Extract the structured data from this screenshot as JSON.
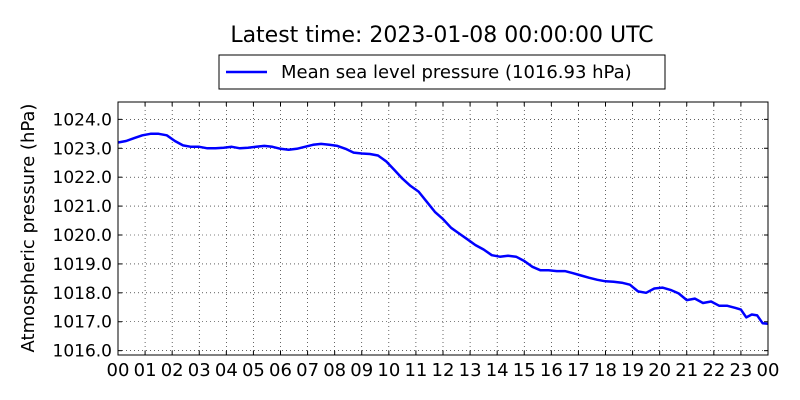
{
  "chart_data": {
    "type": "line",
    "title": "Latest time: 2023-01-08 00:00:00 UTC",
    "ylabel": "Atmospheric pressure (hPa)",
    "xlabel": "",
    "legend_position": "top",
    "grid": true,
    "grid_style": "dotted",
    "xlim": [
      0,
      24
    ],
    "ylim": [
      1015.85,
      1024.6
    ],
    "x_ticks": [
      0,
      1,
      2,
      3,
      4,
      5,
      6,
      7,
      8,
      9,
      10,
      11,
      12,
      13,
      14,
      15,
      16,
      17,
      18,
      19,
      20,
      21,
      22,
      23,
      24
    ],
    "x_tick_labels": [
      "00",
      "01",
      "02",
      "03",
      "04",
      "05",
      "06",
      "07",
      "08",
      "09",
      "10",
      "11",
      "12",
      "13",
      "14",
      "15",
      "16",
      "17",
      "18",
      "19",
      "20",
      "21",
      "22",
      "23",
      "00"
    ],
    "y_ticks": [
      1016,
      1017,
      1018,
      1019,
      1020,
      1021,
      1022,
      1023,
      1024
    ],
    "y_tick_labels": [
      "1016.0",
      "1017.0",
      "1018.0",
      "1019.0",
      "1020.0",
      "1021.0",
      "1022.0",
      "1023.0",
      "1024.0"
    ],
    "series": [
      {
        "name": "Mean sea level pressure (1016.93 hPa)",
        "color": "#0000ff",
        "x": [
          0,
          0.3,
          0.6,
          0.9,
          1.2,
          1.5,
          1.8,
          2.1,
          2.4,
          2.7,
          3,
          3.3,
          3.6,
          3.9,
          4.2,
          4.5,
          4.8,
          5.1,
          5.4,
          5.7,
          6,
          6.3,
          6.6,
          6.9,
          7.2,
          7.5,
          7.8,
          8.1,
          8.4,
          8.7,
          9,
          9.3,
          9.6,
          9.9,
          10.2,
          10.5,
          10.8,
          11.1,
          11.4,
          11.7,
          12,
          12.3,
          12.6,
          12.9,
          13.2,
          13.5,
          13.8,
          14.1,
          14.4,
          14.7,
          15,
          15.3,
          15.6,
          15.9,
          16.2,
          16.5,
          16.8,
          17.1,
          17.4,
          17.7,
          18,
          18.3,
          18.6,
          18.9,
          19.2,
          19.5,
          19.8,
          20.1,
          20.4,
          20.7,
          21,
          21.3,
          21.6,
          21.9,
          22.2,
          22.5,
          22.8,
          23,
          23.2,
          23.4,
          23.6,
          23.8,
          24
        ],
        "y": [
          1023.2,
          1023.25,
          1023.35,
          1023.45,
          1023.5,
          1023.5,
          1023.45,
          1023.25,
          1023.1,
          1023.05,
          1023.05,
          1023.0,
          1023.0,
          1023.02,
          1023.05,
          1023.0,
          1023.02,
          1023.05,
          1023.08,
          1023.05,
          1022.98,
          1022.95,
          1022.98,
          1023.05,
          1023.12,
          1023.15,
          1023.12,
          1023.08,
          1022.98,
          1022.85,
          1022.82,
          1022.8,
          1022.75,
          1022.55,
          1022.25,
          1021.95,
          1021.7,
          1021.5,
          1021.15,
          1020.8,
          1020.55,
          1020.25,
          1020.05,
          1019.85,
          1019.65,
          1019.5,
          1019.3,
          1019.25,
          1019.28,
          1019.25,
          1019.1,
          1018.9,
          1018.78,
          1018.78,
          1018.75,
          1018.75,
          1018.68,
          1018.6,
          1018.52,
          1018.45,
          1018.4,
          1018.38,
          1018.35,
          1018.28,
          1018.05,
          1018.0,
          1018.15,
          1018.18,
          1018.1,
          1017.98,
          1017.75,
          1017.8,
          1017.65,
          1017.7,
          1017.55,
          1017.55,
          1017.48,
          1017.42,
          1017.15,
          1017.25,
          1017.22,
          1016.95,
          1016.93
        ]
      }
    ]
  }
}
